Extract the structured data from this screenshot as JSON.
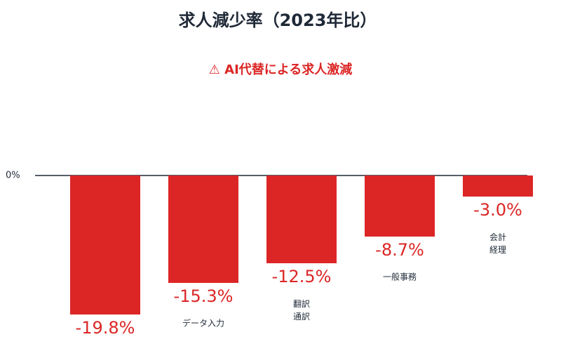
{
  "chart_data": {
    "type": "bar",
    "title": "求人減少率（2023年比）",
    "subtitle": "⚠ AI代替による求人激減",
    "categories": [
      "",
      "データ入力",
      "翻訳\n通訳",
      "一般事務",
      "会計\n経理"
    ],
    "values": [
      -19.8,
      -15.3,
      -12.5,
      -8.7,
      -3.0
    ],
    "value_labels": [
      "-19.8%",
      "-15.3%",
      "-12.5%",
      "-8.7%",
      "-3.0%"
    ],
    "color": "#dc2626",
    "ylim": [
      -20,
      0
    ],
    "yticks": [
      {
        "value": 0,
        "label": "0%"
      }
    ],
    "grid": false
  }
}
